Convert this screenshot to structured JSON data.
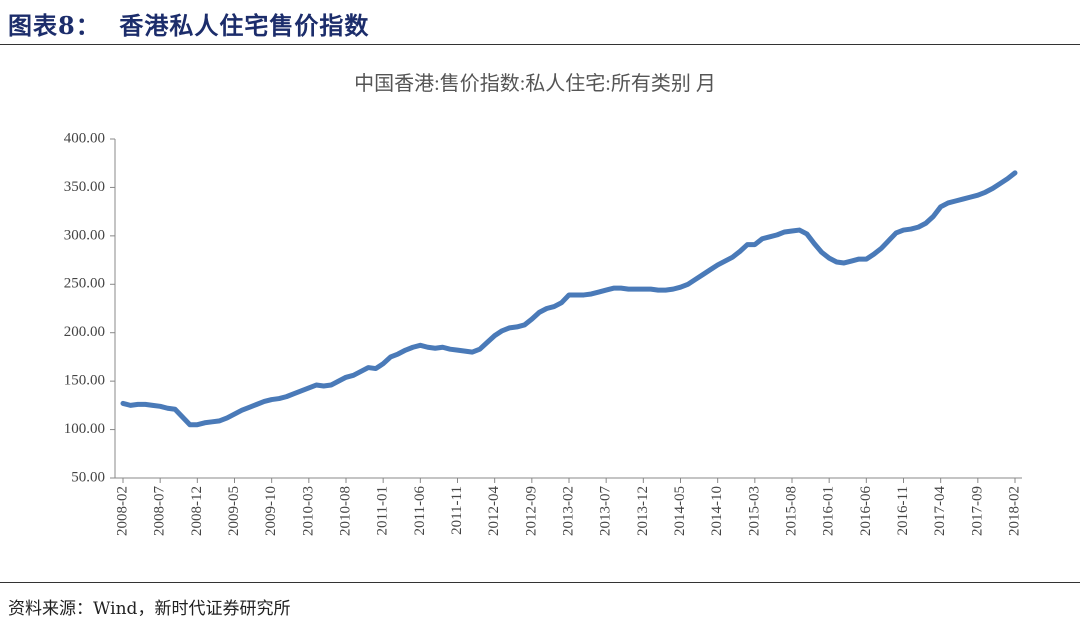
{
  "header": {
    "title": "图表8：  香港私人住宅售价指数"
  },
  "chart_data": {
    "type": "line",
    "title": "中国香港:售价指数:私人住宅:所有类别 月",
    "color": "#4a7ab8",
    "grid": false,
    "ylim": [
      50,
      400
    ],
    "yticks": [
      {
        "value": 50,
        "label": "50.00"
      },
      {
        "value": 100,
        "label": "100.00"
      },
      {
        "value": 150,
        "label": "150.00"
      },
      {
        "value": 200,
        "label": "200.00"
      },
      {
        "value": 250,
        "label": "250.00"
      },
      {
        "value": 300,
        "label": "300.00"
      },
      {
        "value": 350,
        "label": "350.00"
      },
      {
        "value": 400,
        "label": "400.00"
      }
    ],
    "categories": [
      "2008-02",
      null,
      null,
      null,
      null,
      "2008-07",
      null,
      null,
      null,
      null,
      "2008-12",
      null,
      null,
      null,
      null,
      "2009-05",
      null,
      null,
      null,
      null,
      "2009-10",
      null,
      null,
      null,
      null,
      "2010-03",
      null,
      null,
      null,
      null,
      "2010-08",
      null,
      null,
      null,
      null,
      "2011-01",
      null,
      null,
      null,
      null,
      "2011-06",
      null,
      null,
      null,
      null,
      "2011-11",
      null,
      null,
      null,
      null,
      "2012-04",
      null,
      null,
      null,
      null,
      "2012-09",
      null,
      null,
      null,
      null,
      "2013-02",
      null,
      null,
      null,
      null,
      "2013-07",
      null,
      null,
      null,
      null,
      "2013-12",
      null,
      null,
      null,
      null,
      "2014-05",
      null,
      null,
      null,
      null,
      "2014-10",
      null,
      null,
      null,
      null,
      "2015-03",
      null,
      null,
      null,
      null,
      "2015-08",
      null,
      null,
      null,
      null,
      "2016-01",
      null,
      null,
      null,
      null,
      "2016-06",
      null,
      null,
      null,
      null,
      "2016-11",
      null,
      null,
      null,
      null,
      "2017-04",
      null,
      null,
      null,
      null,
      "2017-09",
      null,
      null,
      null,
      null,
      "2018-02"
    ],
    "values": [
      127,
      125,
      126,
      126,
      125,
      124,
      122,
      121,
      113,
      105,
      105,
      107,
      108,
      109,
      112,
      116,
      120,
      123,
      126,
      129,
      131,
      132,
      134,
      137,
      140,
      143,
      146,
      145,
      146,
      150,
      154,
      156,
      160,
      164,
      163,
      168,
      175,
      178,
      182,
      185,
      187,
      185,
      184,
      185,
      183,
      182,
      181,
      180,
      183,
      190,
      197,
      202,
      205,
      206,
      208,
      214,
      221,
      225,
      227,
      231,
      239,
      239,
      239,
      240,
      242,
      244,
      246,
      246,
      245,
      245,
      245,
      245,
      244,
      244,
      245,
      247,
      250,
      255,
      260,
      265,
      270,
      274,
      278,
      284,
      291,
      291,
      297,
      299,
      301,
      304,
      305,
      306,
      302,
      292,
      283,
      277,
      273,
      272,
      274,
      276,
      276,
      281,
      287,
      295,
      303,
      306,
      307,
      309,
      313,
      320,
      330,
      334,
      336,
      338,
      340,
      342,
      345,
      349,
      354,
      359,
      365
    ]
  },
  "source": "资料来源：Wind，新时代证券研究所"
}
